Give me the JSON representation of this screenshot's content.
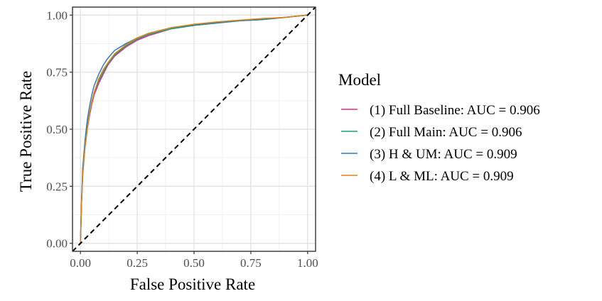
{
  "chart_data": {
    "type": "line",
    "title": "",
    "xlabel": "False Positive Rate",
    "ylabel": "True Positive Rate",
    "xlim": [
      -0.035,
      1.035
    ],
    "ylim": [
      -0.035,
      1.035
    ],
    "grid": true,
    "x_ticks": [
      0.0,
      0.25,
      0.5,
      0.75,
      1.0
    ],
    "x_tick_labels": [
      "0.00",
      "0.25",
      "0.50",
      "0.75",
      "1.00"
    ],
    "y_ticks": [
      0.0,
      0.25,
      0.5,
      0.75,
      1.0
    ],
    "y_tick_labels": [
      "0.00",
      "0.25",
      "0.50",
      "0.75",
      "1.00"
    ],
    "reference_line": {
      "name": "chance",
      "x": [
        0,
        1
      ],
      "y": [
        0,
        1
      ],
      "style": "dashed",
      "color": "#000000"
    },
    "legend_title": "Model",
    "legend_position": "right",
    "series": [
      {
        "name": "(1) Full Baseline: AUC = 0.906",
        "color": "#E7298A",
        "x": [
          0,
          0.005,
          0.01,
          0.02,
          0.03,
          0.04,
          0.05,
          0.06,
          0.08,
          0.1,
          0.12,
          0.15,
          0.2,
          0.25,
          0.3,
          0.4,
          0.5,
          0.6,
          0.7,
          0.8,
          0.9,
          0.95,
          1.0
        ],
        "y": [
          0,
          0.18,
          0.3,
          0.42,
          0.5,
          0.56,
          0.61,
          0.65,
          0.7,
          0.74,
          0.78,
          0.82,
          0.86,
          0.89,
          0.91,
          0.94,
          0.955,
          0.965,
          0.975,
          0.98,
          0.99,
          0.995,
          1.0
        ]
      },
      {
        "name": "(2) Full Main: AUC = 0.906",
        "color": "#1B9E77",
        "x": [
          0,
          0.005,
          0.01,
          0.02,
          0.03,
          0.04,
          0.05,
          0.06,
          0.08,
          0.1,
          0.12,
          0.15,
          0.2,
          0.25,
          0.3,
          0.4,
          0.5,
          0.6,
          0.7,
          0.8,
          0.9,
          0.95,
          1.0
        ],
        "y": [
          0,
          0.19,
          0.31,
          0.43,
          0.51,
          0.57,
          0.62,
          0.66,
          0.71,
          0.75,
          0.785,
          0.825,
          0.865,
          0.895,
          0.915,
          0.94,
          0.955,
          0.965,
          0.975,
          0.98,
          0.99,
          0.995,
          1.0
        ]
      },
      {
        "name": "(3) H & UM: AUC = 0.909",
        "color": "#2C7FB8",
        "x": [
          0,
          0.005,
          0.01,
          0.02,
          0.03,
          0.04,
          0.05,
          0.06,
          0.08,
          0.1,
          0.12,
          0.15,
          0.2,
          0.25,
          0.3,
          0.4,
          0.5,
          0.6,
          0.7,
          0.8,
          0.9,
          0.95,
          1.0
        ],
        "y": [
          0,
          0.2,
          0.33,
          0.45,
          0.54,
          0.6,
          0.65,
          0.69,
          0.74,
          0.78,
          0.81,
          0.845,
          0.875,
          0.9,
          0.92,
          0.945,
          0.957,
          0.967,
          0.975,
          0.982,
          0.99,
          0.995,
          1.0
        ]
      },
      {
        "name": "(4) L & ML: AUC = 0.909",
        "color": "#E08214",
        "x": [
          0,
          0.005,
          0.01,
          0.02,
          0.03,
          0.04,
          0.05,
          0.06,
          0.08,
          0.1,
          0.12,
          0.15,
          0.2,
          0.25,
          0.3,
          0.4,
          0.5,
          0.6,
          0.7,
          0.8,
          0.9,
          0.95,
          1.0
        ],
        "y": [
          0,
          0.18,
          0.3,
          0.42,
          0.5,
          0.57,
          0.62,
          0.66,
          0.72,
          0.76,
          0.79,
          0.83,
          0.87,
          0.9,
          0.92,
          0.945,
          0.96,
          0.97,
          0.978,
          0.985,
          0.99,
          0.995,
          1.0
        ]
      }
    ]
  }
}
